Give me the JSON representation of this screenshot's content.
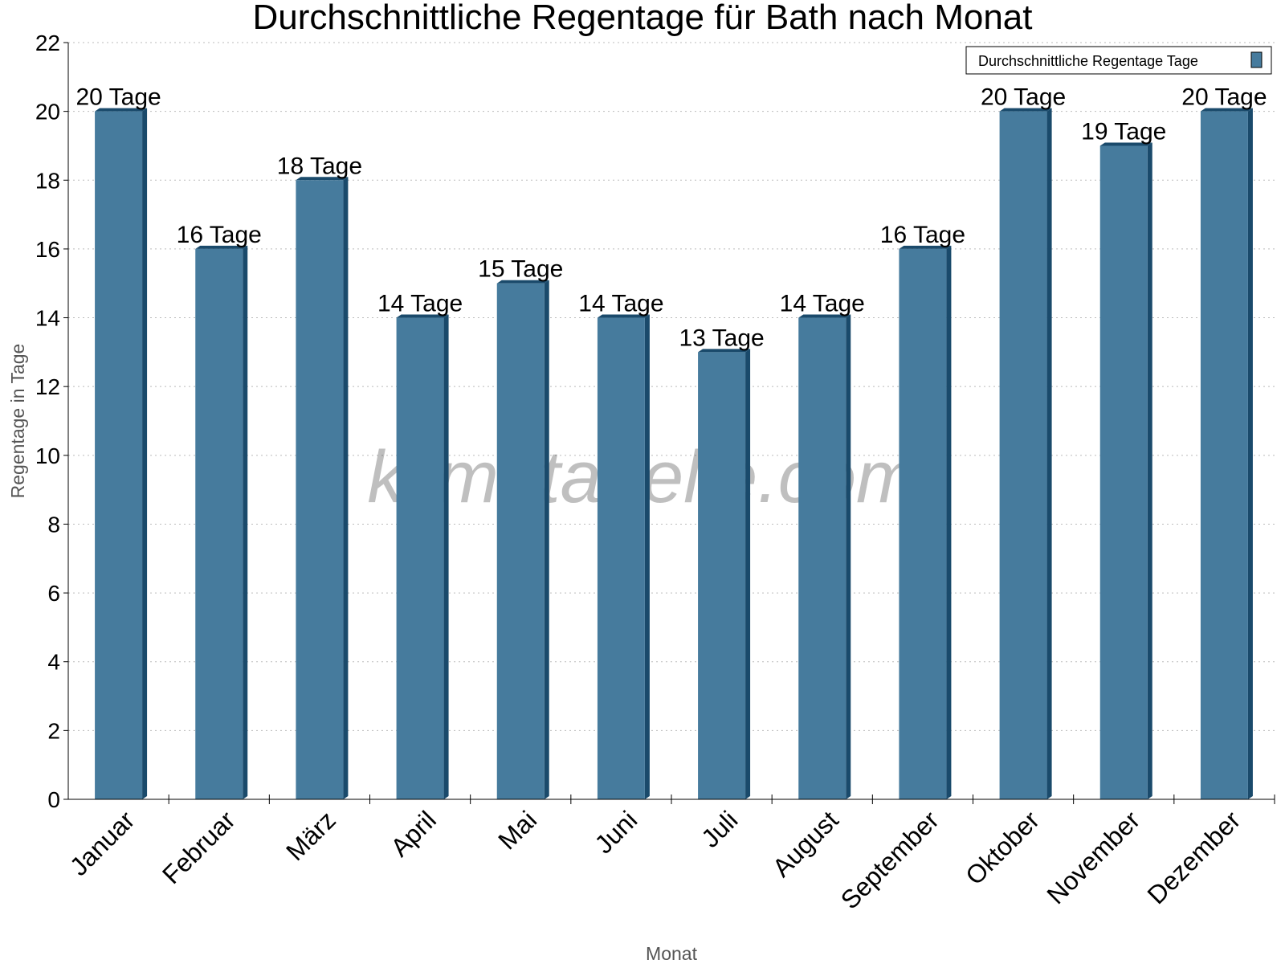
{
  "chart_data": {
    "type": "bar",
    "title": "Durchschnittliche Regentage für Bath nach Monat",
    "xlabel": "Monat",
    "ylabel": "Regentage in Tage",
    "categories": [
      "Januar",
      "Februar",
      "März",
      "April",
      "Mai",
      "Juni",
      "Juli",
      "August",
      "September",
      "Oktober",
      "November",
      "Dezember"
    ],
    "series": [
      {
        "name": "Durchschnittliche Regentage Tage",
        "values": [
          20,
          16,
          18,
          14,
          15,
          14,
          13,
          14,
          16,
          20,
          19,
          20
        ],
        "color": "#467b9d",
        "side_color": "#1a4a6b"
      }
    ],
    "data_labels": [
      "20 Tage",
      "16 Tage",
      "18 Tage",
      "14 Tage",
      "15 Tage",
      "14 Tage",
      "13 Tage",
      "14 Tage",
      "16 Tage",
      "20 Tage",
      "19 Tage",
      "20 Tage"
    ],
    "ylim": [
      0,
      22
    ],
    "yticks": [
      0,
      2,
      4,
      6,
      8,
      10,
      12,
      14,
      16,
      18,
      20,
      22
    ],
    "grid": true,
    "legend_position": "top-right",
    "watermark": "klimatabelle.com"
  }
}
